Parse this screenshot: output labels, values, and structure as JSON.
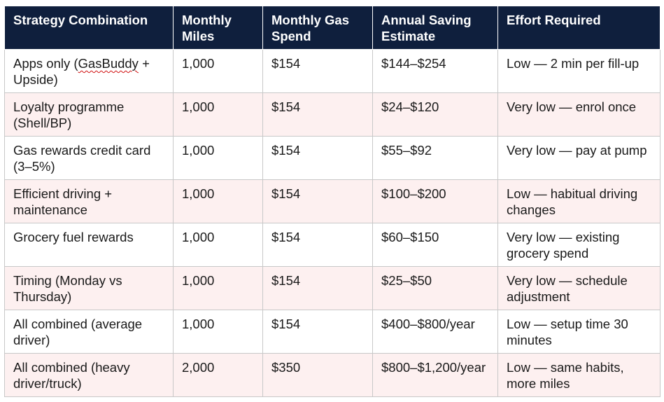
{
  "table": {
    "headers": [
      "Strategy Combination",
      "Monthly Miles",
      "Monthly Gas Spend",
      "Annual Saving Estimate",
      "Effort Required"
    ],
    "rows": [
      {
        "strategy_prefix": "Apps only (",
        "strategy_flagged": "GasBuddy",
        "strategy_suffix": " + Upside)",
        "miles": "1,000",
        "spend": "$154",
        "saving": "$144–$254",
        "effort": "Low — 2 min per fill-up"
      },
      {
        "strategy": "Loyalty programme (Shell/BP)",
        "miles": "1,000",
        "spend": "$154",
        "saving": "$24–$120",
        "effort": "Very low — enrol once"
      },
      {
        "strategy": "Gas rewards credit card (3–5%)",
        "miles": "1,000",
        "spend": "$154",
        "saving": "$55–$92",
        "effort": "Very low — pay at pump"
      },
      {
        "strategy": "Efficient driving + maintenance",
        "miles": "1,000",
        "spend": "$154",
        "saving": "$100–$200",
        "effort": "Low — habitual driving changes"
      },
      {
        "strategy": "Grocery fuel rewards",
        "miles": "1,000",
        "spend": "$154",
        "saving": "$60–$150",
        "effort": "Very low — existing grocery spend"
      },
      {
        "strategy": "Timing (Monday vs Thursday)",
        "miles": "1,000",
        "spend": "$154",
        "saving": "$25–$50",
        "effort": "Very low — schedule adjustment"
      },
      {
        "strategy": "All combined (average driver)",
        "miles": "1,000",
        "spend": "$154",
        "saving": "$400–$800/year",
        "effort": "Low — setup time 30 minutes"
      },
      {
        "strategy": "All combined (heavy driver/truck)",
        "miles": "2,000",
        "spend": "$350",
        "saving": "$800–$1,200/year",
        "effort": "Low — same habits, more miles"
      }
    ]
  },
  "colors": {
    "header_background": "#0f1f3d",
    "header_text": "#ffffff",
    "alt_row_background": "#fdf0f0",
    "body_text": "#1a1a1a",
    "grid_line": "#c8c8c8",
    "spellcheck_underline": "#d01010"
  }
}
